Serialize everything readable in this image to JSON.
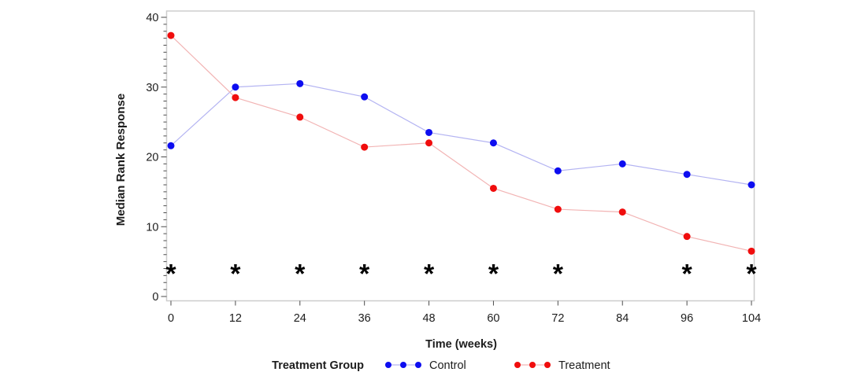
{
  "chart_data": {
    "type": "line",
    "title": "",
    "xlabel": "Time (weeks)",
    "ylabel": "Median Rank Response",
    "categories": [
      0,
      12,
      24,
      36,
      48,
      60,
      72,
      84,
      96,
      104
    ],
    "x_tick_labels": [
      "0",
      "12",
      "24",
      "36",
      "48",
      "60",
      "72",
      "84",
      "96",
      "104"
    ],
    "y_major_ticks": [
      0,
      10,
      20,
      30,
      40
    ],
    "y_minor_step": 1,
    "ylim": [
      0,
      40
    ],
    "grid": false,
    "series": [
      {
        "name": "Control",
        "marker_color": "#0d0df0",
        "line_color": "#b4b4f2",
        "values": [
          21.6,
          30.0,
          30.5,
          28.6,
          23.5,
          22.0,
          18.0,
          19.0,
          17.5,
          16.0
        ]
      },
      {
        "name": "Treatment",
        "marker_color": "#f00d0d",
        "line_color": "#f2b4b4",
        "values": [
          37.4,
          28.5,
          25.7,
          21.4,
          22.0,
          15.5,
          12.5,
          12.1,
          8.6,
          6.5
        ]
      }
    ],
    "annotations": {
      "symbol": "*",
      "color": "#000000",
      "y_value": 4,
      "weeks": [
        0,
        12,
        24,
        36,
        48,
        60,
        72,
        96,
        104
      ]
    },
    "legend": {
      "title": "Treatment Group",
      "entries": [
        "Control",
        "Treatment"
      ],
      "position": "bottom"
    },
    "frame_color": "#cdcdcd",
    "tick_color": "#4b4b4b",
    "text_color": "#1c1c1c"
  }
}
